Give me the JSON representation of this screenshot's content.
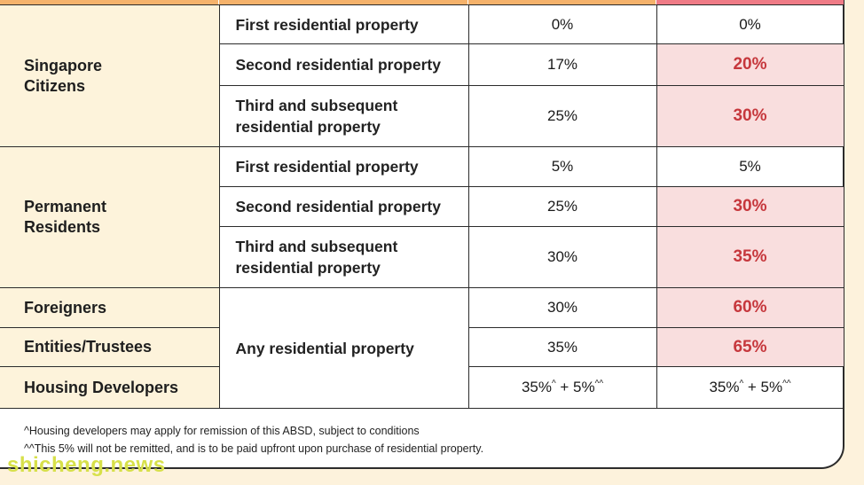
{
  "colors": {
    "accent_header": "#f5b26b",
    "highlight_bg": "#f9dede",
    "highlight_text": "#c6373c",
    "category_bg": "#fdf3db"
  },
  "table": {
    "singapore_citizens": {
      "label": "Singapore Citizens",
      "rows": [
        {
          "property": "First residential property",
          "current": "0%",
          "new": "0%"
        },
        {
          "property": "Second residential property",
          "current": "17%",
          "new": "20%"
        },
        {
          "property": "Third and subsequent residential property",
          "current": "25%",
          "new": "30%"
        }
      ]
    },
    "permanent_residents": {
      "label": "Permanent Residents",
      "rows": [
        {
          "property": "First residential property",
          "current": "5%",
          "new": "5%"
        },
        {
          "property": "Second residential property",
          "current": "25%",
          "new": "30%"
        },
        {
          "property": "Third and subsequent residential property",
          "current": "30%",
          "new": "35%"
        }
      ]
    },
    "others": {
      "property": "Any residential property",
      "rows": [
        {
          "label": "Foreigners",
          "current": "30%",
          "new": "60%"
        },
        {
          "label": "Entities/Trustees",
          "current": "35%",
          "new": "65%"
        },
        {
          "label": "Housing Developers",
          "current_base": "35%",
          "current_sup": "^",
          "current_plus": " + 5%",
          "current_sup2": "^^",
          "new_base": "35%",
          "new_sup": "^",
          "new_plus": " + 5%",
          "new_sup2": "^^"
        }
      ]
    }
  },
  "notes": {
    "note1": "^Housing developers may apply for remission of this ABSD, subject to conditions",
    "note2": "^^This 5% will not be remitted, and is to be paid upfront upon purchase of residential property."
  },
  "watermark": "shicheng.news"
}
